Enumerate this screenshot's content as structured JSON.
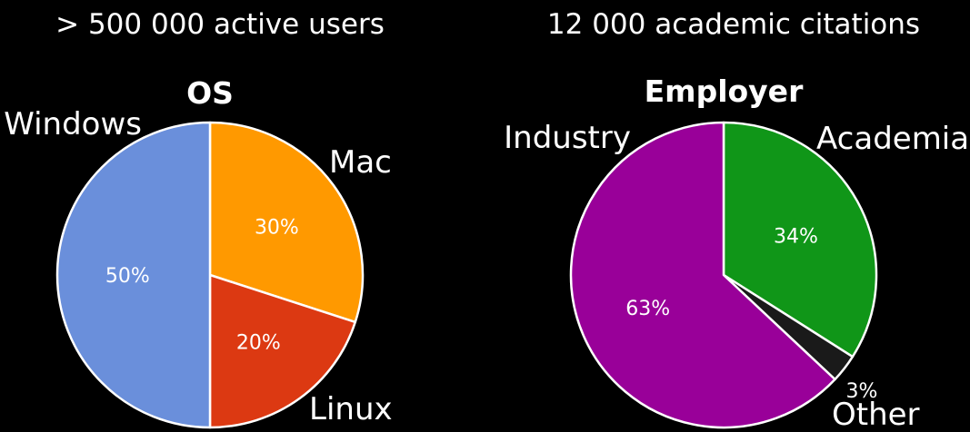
{
  "headlines": {
    "users": "> 500 000 active users",
    "citations": "12 000 academic citations"
  },
  "chart_data": [
    {
      "type": "pie",
      "title": "OS",
      "slices": [
        {
          "label": "Mac",
          "value": 30,
          "value_label": "30%",
          "color": "#ff9900"
        },
        {
          "label": "Linux",
          "value": 20,
          "value_label": "20%",
          "color": "#dc3912"
        },
        {
          "label": "Windows",
          "value": 50,
          "value_label": "50%",
          "color": "#6a8fdb"
        }
      ]
    },
    {
      "type": "pie",
      "title": "Employer",
      "slices": [
        {
          "label": "Academia",
          "value": 34,
          "value_label": "34%",
          "color": "#109618"
        },
        {
          "label": "Other",
          "value": 3,
          "value_label": "3%",
          "color": "#1a1a1a"
        },
        {
          "label": "Industry",
          "value": 63,
          "value_label": "63%",
          "color": "#990099"
        }
      ]
    }
  ]
}
